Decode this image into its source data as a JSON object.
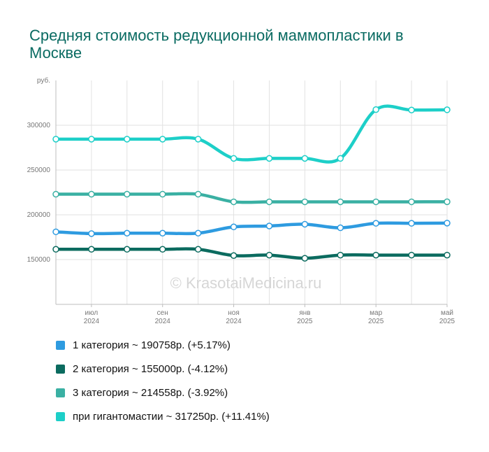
{
  "chart_data": {
    "type": "line",
    "title": "Средняя стоимость редукционной маммопластики в Москве",
    "y_unit_label": "руб.",
    "watermark": "© KrasotaiMedicina.ru",
    "ylim": [
      100000,
      350000
    ],
    "y_ticks": [
      150000,
      200000,
      250000,
      300000
    ],
    "y_tick_labels": [
      "150000",
      "200000",
      "250000",
      "300000"
    ],
    "x": [
      "2024-06",
      "2024-07",
      "2024-08",
      "2024-09",
      "2024-10",
      "2024-11",
      "2024-12",
      "2025-01",
      "2025-02",
      "2025-03",
      "2025-04",
      "2025-05"
    ],
    "x_tick_labels": [
      {
        "index": 1,
        "month": "июл",
        "year": "2024"
      },
      {
        "index": 3,
        "month": "сен",
        "year": "2024"
      },
      {
        "index": 5,
        "month": "ноя",
        "year": "2024"
      },
      {
        "index": 7,
        "month": "янв",
        "year": "2025"
      },
      {
        "index": 9,
        "month": "мар",
        "year": "2025"
      },
      {
        "index": 11,
        "month": "май",
        "year": "2025"
      }
    ],
    "grid": true,
    "legend_position": "bottom",
    "series": [
      {
        "name": "1 категория",
        "color": "#2e9be0",
        "legend": "1 категория ~ 190758р. (+5.17%)",
        "values": [
          181000,
          179000,
          179500,
          179500,
          179500,
          186500,
          187500,
          189500,
          185500,
          190500,
          190500,
          190758
        ]
      },
      {
        "name": "2 категория",
        "color": "#0b6b5f",
        "legend": "2 категория ~ 155000р. (-4.12%)",
        "values": [
          161500,
          161500,
          161500,
          161500,
          161500,
          154500,
          155000,
          151500,
          155000,
          155000,
          155000,
          155000
        ]
      },
      {
        "name": "3 категория",
        "color": "#3ab0a3",
        "legend": "3 категория ~ 214558р. (-3.92%)",
        "values": [
          223000,
          223000,
          223000,
          223000,
          223000,
          214500,
          214500,
          214500,
          214500,
          214500,
          214500,
          214558
        ]
      },
      {
        "name": "при гигантомастии",
        "color": "#1dcfc8",
        "legend": "при гигантомастии ~ 317250р. (+11.41%)",
        "values": [
          284500,
          284500,
          284500,
          284500,
          284500,
          263000,
          263000,
          263000,
          263000,
          317500,
          317000,
          317250
        ]
      }
    ]
  }
}
